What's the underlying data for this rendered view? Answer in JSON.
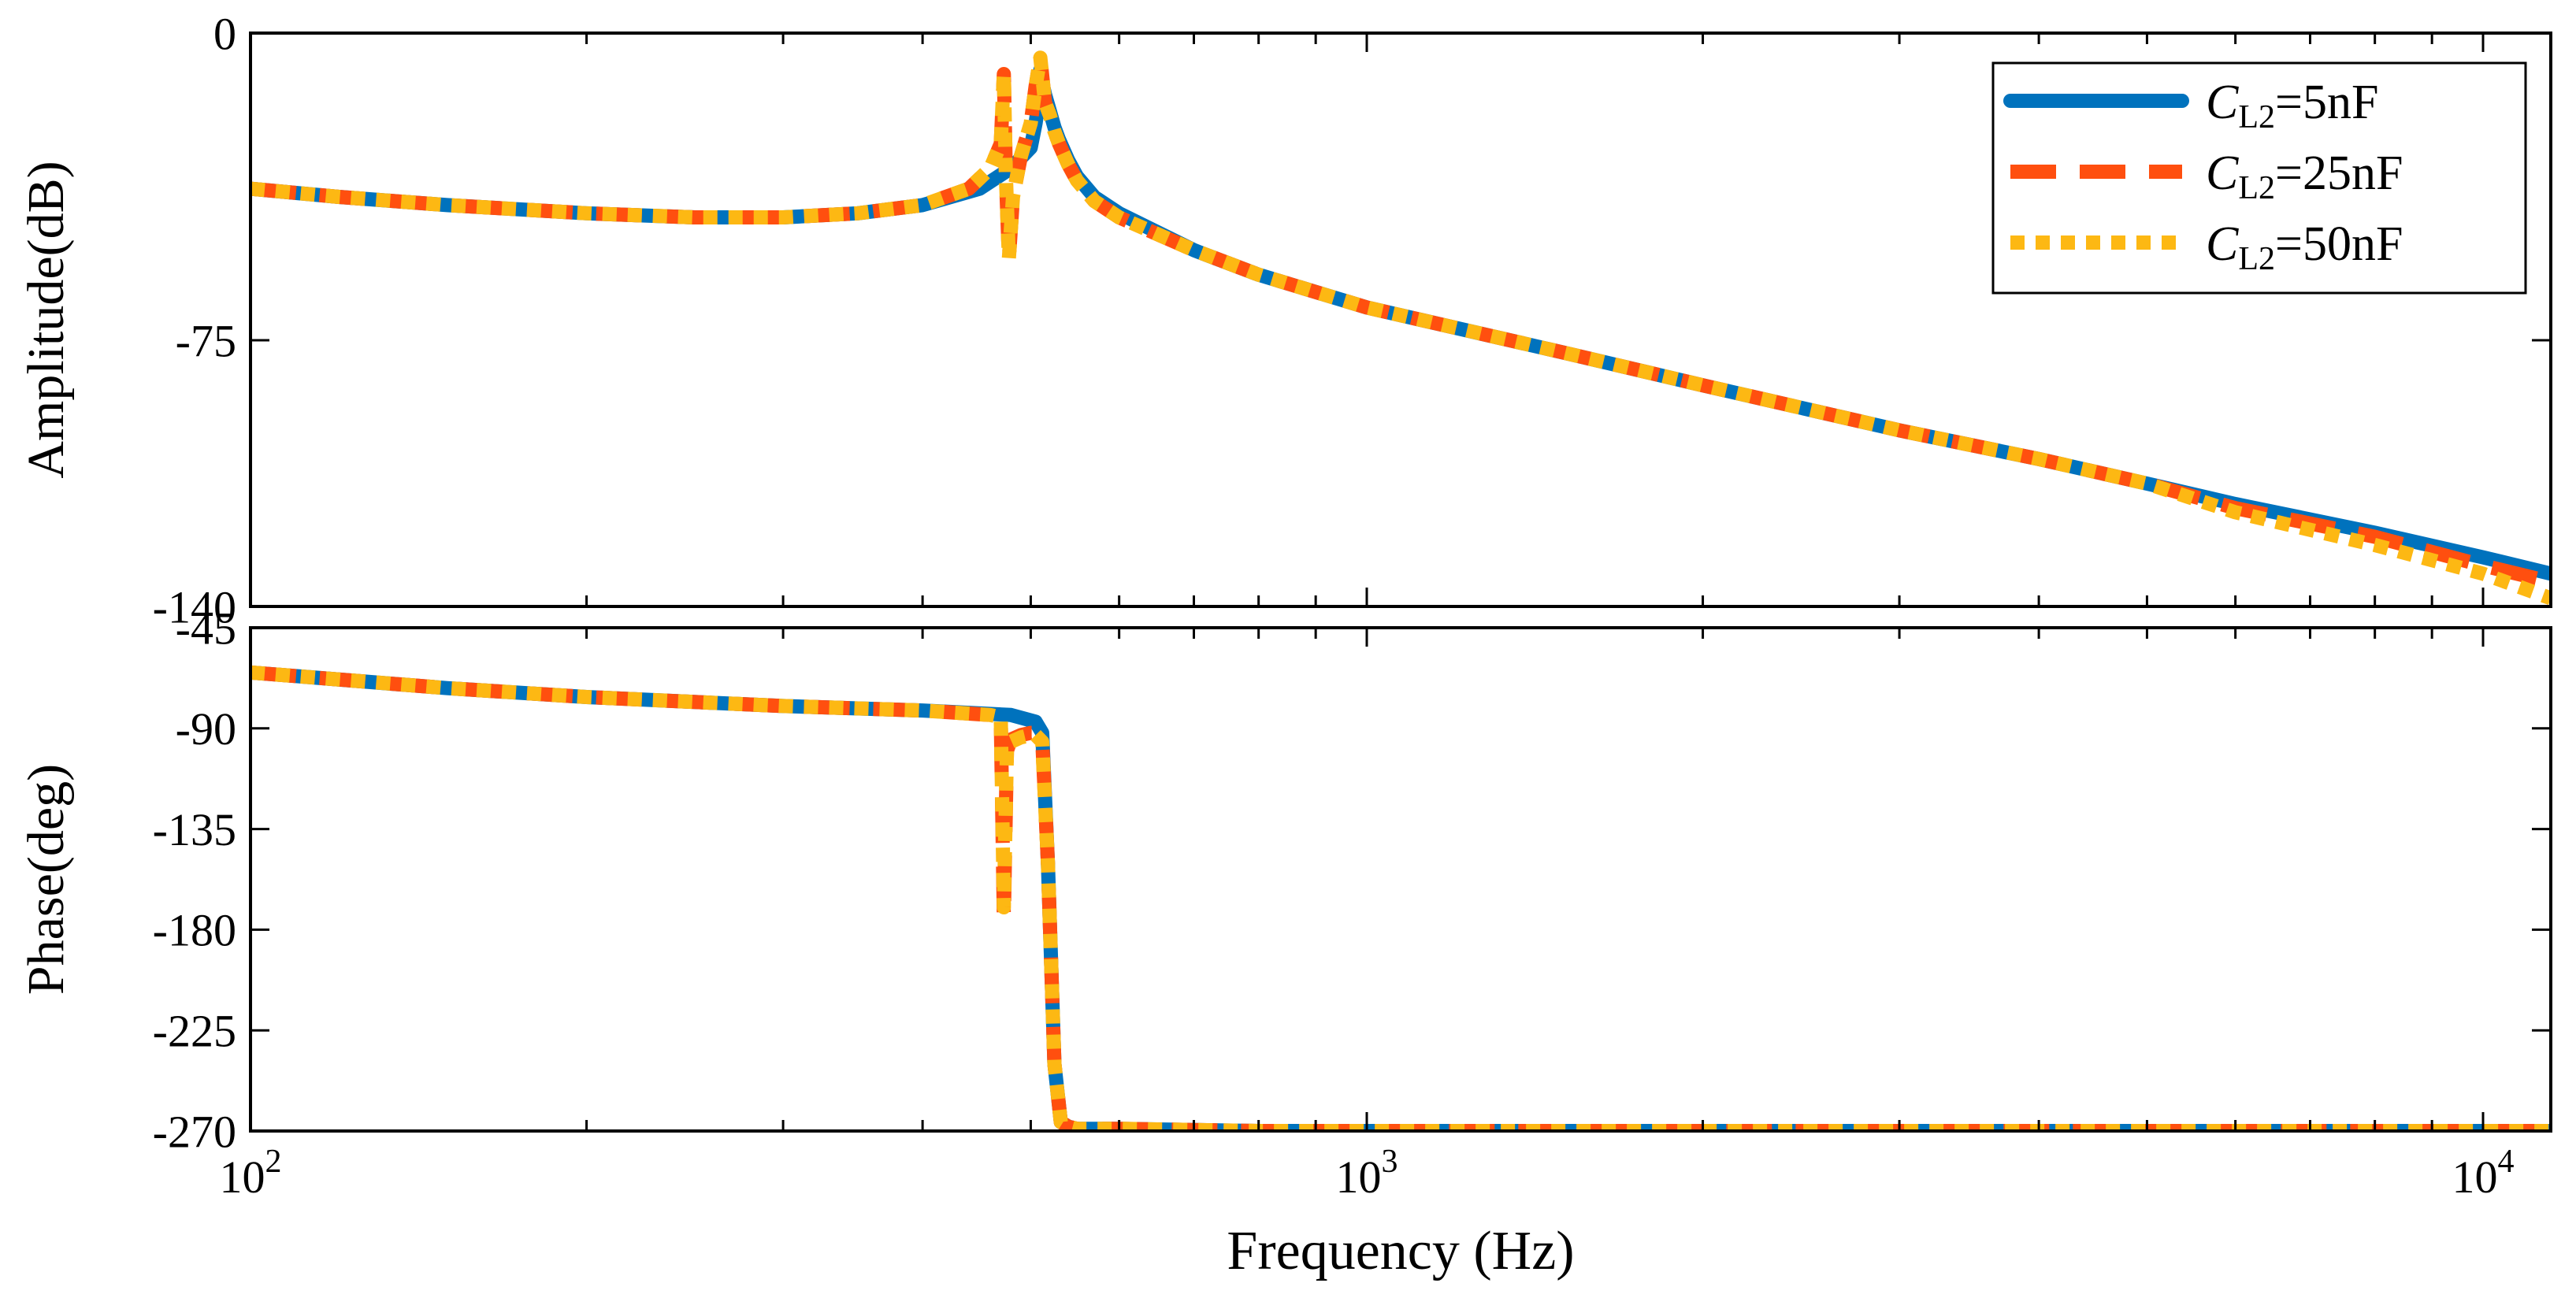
{
  "chart_data": [
    {
      "type": "line",
      "ylabel": "Amplitude(dB)",
      "xlabel": "",
      "x_scale": "log",
      "xlim": [
        100,
        11500
      ],
      "ylim": [
        -140,
        0
      ],
      "yticks": [
        0,
        -75,
        -140
      ],
      "ytick_labels": [
        "0",
        "-75",
        "-140"
      ],
      "grid": false,
      "legend": {
        "position": "top-right",
        "entries": [
          {
            "prefix": "C",
            "subscript": "L2",
            "suffix": "=5nF",
            "style": "solid",
            "color": "#0072BD"
          },
          {
            "prefix": "C",
            "subscript": "L2",
            "suffix": "=25nF",
            "style": "dashed",
            "color": "#FF4F0F"
          },
          {
            "prefix": "C",
            "subscript": "L2",
            "suffix": "=50nF",
            "style": "dotted",
            "color": "#FDB813"
          }
        ]
      },
      "series": [
        {
          "name": "CL2=5nF",
          "color": "#0072BD",
          "style": "solid",
          "x": [
            100,
            120,
            150,
            200,
            250,
            300,
            350,
            400,
            450,
            480,
            500,
            505,
            508,
            510,
            512,
            515,
            520,
            525,
            530,
            540,
            550,
            570,
            600,
            700,
            800,
            1000,
            1500,
            2000,
            3000,
            4000,
            5000,
            6000,
            8000,
            10000,
            11500
          ],
          "y": [
            -38,
            -40,
            -42,
            -44,
            -45,
            -45,
            -44,
            -42,
            -38,
            -33,
            -28,
            -22,
            -17,
            -9,
            -12,
            -15,
            -19,
            -23,
            -26,
            -31,
            -35,
            -40,
            -44,
            -53,
            -59,
            -67,
            -78,
            -86,
            -97,
            -104,
            -110,
            -115,
            -122,
            -128,
            -132
          ]
        },
        {
          "name": "CL2=25nF",
          "color": "#FF4F0F",
          "style": "dashed",
          "x": [
            100,
            120,
            150,
            200,
            250,
            300,
            350,
            400,
            440,
            460,
            470,
            473,
            475,
            478,
            482,
            490,
            500,
            505,
            510,
            515,
            520,
            525,
            530,
            540,
            550,
            570,
            600,
            700,
            800,
            1000,
            1500,
            2000,
            3000,
            4000,
            5000,
            6000,
            8000,
            10000,
            11500
          ],
          "y": [
            -38,
            -40,
            -42,
            -44,
            -45,
            -45,
            -44,
            -42,
            -38,
            -33,
            -27,
            -10,
            -35,
            -55,
            -40,
            -30,
            -22,
            -13,
            -6,
            -17,
            -20,
            -24,
            -27,
            -32,
            -36,
            -41,
            -45,
            -53,
            -59,
            -67,
            -78,
            -86,
            -97,
            -104,
            -110,
            -116,
            -123,
            -130,
            -134
          ]
        },
        {
          "name": "CL2=50nF",
          "color": "#FDB813",
          "style": "dotted",
          "x": [
            100,
            120,
            150,
            200,
            250,
            300,
            350,
            400,
            440,
            460,
            470,
            473,
            475,
            478,
            482,
            490,
            500,
            505,
            510,
            515,
            520,
            525,
            530,
            540,
            550,
            570,
            600,
            700,
            800,
            1000,
            1500,
            2000,
            3000,
            4000,
            5000,
            6000,
            8000,
            10000,
            11500
          ],
          "y": [
            -38,
            -40,
            -42,
            -44,
            -45,
            -45,
            -44,
            -42,
            -38,
            -33,
            -27,
            -10,
            -35,
            -55,
            -40,
            -30,
            -22,
            -13,
            -6,
            -17,
            -20,
            -24,
            -27,
            -32,
            -36,
            -41,
            -45,
            -53,
            -59,
            -67,
            -78,
            -86,
            -97,
            -104,
            -110,
            -117,
            -125,
            -132,
            -138
          ]
        }
      ]
    },
    {
      "type": "line",
      "ylabel": "Phase(deg)",
      "xlabel": "Frequency (Hz)",
      "x_scale": "log",
      "xlim": [
        100,
        11500
      ],
      "ylim": [
        -270,
        -45
      ],
      "yticks": [
        -45,
        -90,
        -135,
        -180,
        -225,
        -270
      ],
      "ytick_labels": [
        "-45",
        "-90",
        "-135",
        "-180",
        "-225",
        "-270"
      ],
      "xticks": [
        100,
        1000,
        10000
      ],
      "xtick_labels": [
        {
          "base": "10",
          "exp": "2"
        },
        {
          "base": "10",
          "exp": "3"
        },
        {
          "base": "10",
          "exp": "4"
        }
      ],
      "grid": false,
      "series": [
        {
          "name": "CL2=5nF",
          "color": "#0072BD",
          "style": "solid",
          "x": [
            100,
            150,
            200,
            300,
            400,
            480,
            505,
            512,
            518,
            525,
            532,
            540,
            550,
            600,
            800,
            1000,
            2000,
            5000,
            11500
          ],
          "y": [
            -65,
            -72,
            -76,
            -80,
            -82,
            -84,
            -87,
            -92,
            -150,
            -240,
            -266,
            -268,
            -269,
            -269,
            -270,
            -270,
            -270,
            -270,
            -270
          ]
        },
        {
          "name": "CL2=25nF",
          "color": "#FF4F0F",
          "style": "dashed",
          "x": [
            100,
            150,
            200,
            300,
            400,
            460,
            470,
            473,
            476,
            480,
            490,
            500,
            505,
            512,
            518,
            525,
            532,
            540,
            550,
            600,
            800,
            1000,
            2000,
            5000,
            11500
          ],
          "y": [
            -65,
            -72,
            -76,
            -80,
            -82,
            -84,
            -85,
            -175,
            -100,
            -95,
            -93,
            -92,
            -92,
            -95,
            -150,
            -240,
            -266,
            -268,
            -269,
            -269,
            -270,
            -270,
            -270,
            -270,
            -270
          ]
        },
        {
          "name": "CL2=50nF",
          "color": "#FDB813",
          "style": "dotted",
          "x": [
            100,
            150,
            200,
            300,
            400,
            460,
            470,
            473,
            476,
            480,
            490,
            500,
            505,
            512,
            518,
            525,
            532,
            540,
            550,
            600,
            800,
            1000,
            2000,
            5000,
            11500
          ],
          "y": [
            -65,
            -72,
            -76,
            -80,
            -82,
            -84,
            -85,
            -170,
            -100,
            -96,
            -94,
            -93,
            -93,
            -96,
            -150,
            -240,
            -266,
            -268,
            -269,
            -269,
            -270,
            -270,
            -270,
            -270,
            -270
          ]
        }
      ]
    }
  ]
}
